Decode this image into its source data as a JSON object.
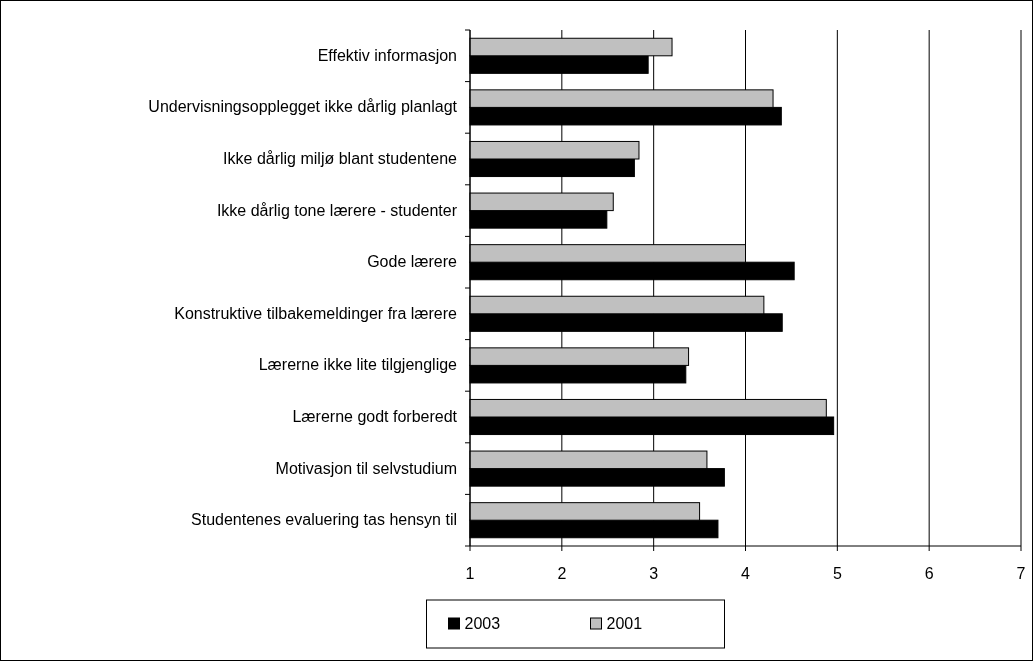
{
  "chart_data": {
    "type": "bar",
    "orientation": "horizontal",
    "categories": [
      "Effektiv informasjon",
      "Undervisningsopplegget ikke dårlig planlagt",
      "Ikke dårlig miljø blant studentene",
      "Ikke dårlig tone lærere - studenter",
      "Gode lærere",
      "Konstruktive tilbakemeldinger fra lærere",
      "Lærerne ikke lite tilgjenglige",
      "Lærerne godt forberedt",
      "Motivasjon til selvstudium",
      "Studentenes evaluering tas hensyn til"
    ],
    "series": [
      {
        "name": "2003",
        "color": "#000000",
        "values": [
          2.94,
          4.39,
          2.79,
          2.49,
          4.53,
          4.4,
          3.35,
          4.96,
          3.77,
          3.7
        ]
      },
      {
        "name": "2001",
        "color": "#c0c0c0",
        "values": [
          3.2,
          4.3,
          2.84,
          2.56,
          4.0,
          4.2,
          3.38,
          4.88,
          3.58,
          3.5
        ]
      }
    ],
    "xlim": [
      1,
      7
    ],
    "xticks": [
      1,
      2,
      3,
      4,
      5,
      6,
      7
    ],
    "grid": "x",
    "legend": "bottom"
  }
}
